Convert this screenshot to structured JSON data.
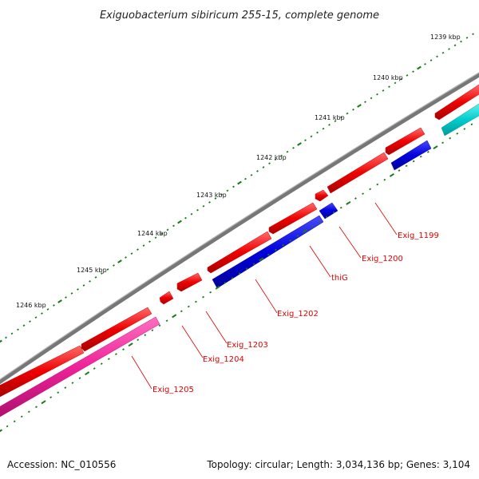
{
  "title": "Exiguobacterium sibiricum 255-15, complete genome",
  "accession_text": "Accession: NC_010556",
  "topology_text": "Topology: circular; Length: 3,034,136 bp; Genes: 3,104",
  "kbp_ticks": [
    "1239 kbp",
    "1240 kbp",
    "1241 kbp",
    "1242 kbp",
    "1243 kbp",
    "1244 kbp",
    "1245 kbp",
    "1246 kbp"
  ],
  "gene_labels": [
    "Exig_1199",
    "Exig_1200",
    "thiG",
    "Exig_1202",
    "Exig_1203",
    "Exig_1204",
    "Exig_1205"
  ],
  "colors": {
    "backbone": "#777777",
    "forward_gene": "#ee0000",
    "reverse_gene": "#0000dd",
    "reverse_gene_cyan": "#00cccc",
    "reverse_gene_magenta": "#ee2299",
    "tick_green": "#1a7a1a",
    "label_red": "#e00000"
  }
}
